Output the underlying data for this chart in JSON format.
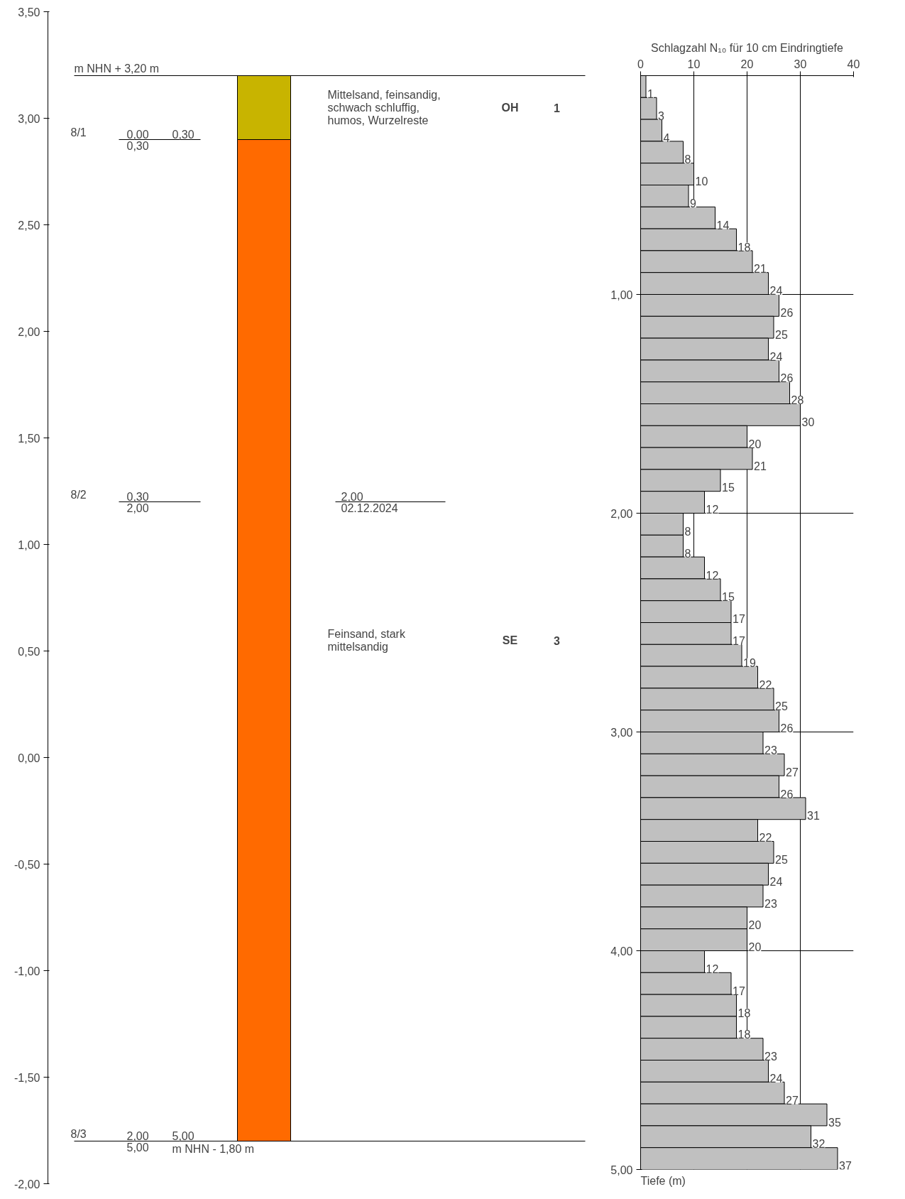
{
  "chart_data": [
    {
      "type": "bar",
      "categories": [
        null
      ],
      "base": [
        -1.8
      ],
      "tick_labels": "y",
      "ylim": [
        -2,
        3.5
      ],
      "values": [
        4.7
      ],
      "color": "#ff6a00",
      "bands": [
        {
          "axis": "y",
          "from": 2.9,
          "to": 3.2,
          "color": "#c8b400"
        }
      ],
      "yticks": [
        {
          "value": 3.5,
          "label": "3,50"
        },
        {
          "value": 3,
          "label": "3,00"
        },
        {
          "value": 2.5,
          "label": "2,50"
        },
        {
          "value": 2,
          "label": "2,00"
        },
        {
          "value": 1.5,
          "label": "1,50"
        },
        {
          "value": 1,
          "label": "1,00"
        },
        {
          "value": 0.5,
          "label": "0,50"
        },
        {
          "value": 0,
          "label": "0,00"
        },
        {
          "value": -0.5,
          "label": "-0,50"
        },
        {
          "value": -1,
          "label": "-1,00"
        },
        {
          "value": -1.5,
          "label": "-1,50"
        },
        {
          "value": -2,
          "label": "-2,00"
        }
      ],
      "ref_lines": [
        {
          "axis": "y",
          "value": 3.2,
          "label": "m NHN + 3,20 m"
        },
        {
          "axis": "y",
          "value": -1.8,
          "label": "m NHN - 1,80 m"
        },
        {
          "axis": "y",
          "value": 1.2,
          "label": null
        }
      ],
      "annotations": [
        "Mittelsand, feinsandig, schwach schluffig, humos, Wurzelreste",
        "OH",
        "1",
        "8/1",
        "0,00",
        "0,30",
        "0,30",
        "8/2",
        "0,30",
        "2,00",
        "2,00",
        "02.12.2024",
        "Feinsand, stark mittelsandig",
        "SE",
        "3",
        "8/3",
        "2,00",
        "5,00",
        "5,00"
      ]
    },
    {
      "type": "bar",
      "orientation": "horizontal",
      "xlabel": "Schlagzahl N₁₀ für 10 cm Eindringtiefe",
      "annotations": [
        "Tiefe (m)"
      ],
      "x": [
        0.05,
        0.15,
        0.25,
        0.35,
        0.45,
        0.55,
        0.65,
        0.75,
        0.85,
        0.95,
        1.05,
        1.15,
        1.25,
        1.35,
        1.45,
        1.55,
        1.65,
        1.75,
        1.85,
        1.95,
        2.05,
        2.15,
        2.25,
        2.35,
        2.45,
        2.55,
        2.65,
        2.75,
        2.85,
        2.95,
        3.05,
        3.15,
        3.25,
        3.35,
        3.45,
        3.55,
        3.65,
        3.75,
        3.85,
        3.95,
        4.05,
        4.15,
        4.25,
        4.35,
        4.45,
        4.55,
        4.65,
        4.75,
        4.85,
        4.95
      ],
      "values": [
        1,
        3,
        4,
        8,
        10,
        9,
        14,
        18,
        21,
        24,
        26,
        25,
        24,
        26,
        28,
        30,
        20,
        21,
        15,
        12,
        8,
        8,
        12,
        15,
        17,
        17,
        19,
        22,
        25,
        26,
        23,
        27,
        26,
        31,
        22,
        25,
        24,
        23,
        20,
        20,
        12,
        17,
        18,
        18,
        23,
        24,
        27,
        35,
        32,
        37
      ],
      "color": "#c0c0c0",
      "data_labels": true,
      "grid": true,
      "xlim": [
        0,
        40
      ],
      "xticks": [
        0,
        10,
        20,
        30,
        40
      ],
      "ylim": [
        5,
        0
      ],
      "yticks": [
        {
          "value": 1,
          "label": "1,00"
        },
        {
          "value": 2,
          "label": "2,00"
        },
        {
          "value": 3,
          "label": "3,00"
        },
        {
          "value": 4,
          "label": "4,00"
        },
        {
          "value": 5,
          "label": "5,00"
        }
      ]
    }
  ]
}
